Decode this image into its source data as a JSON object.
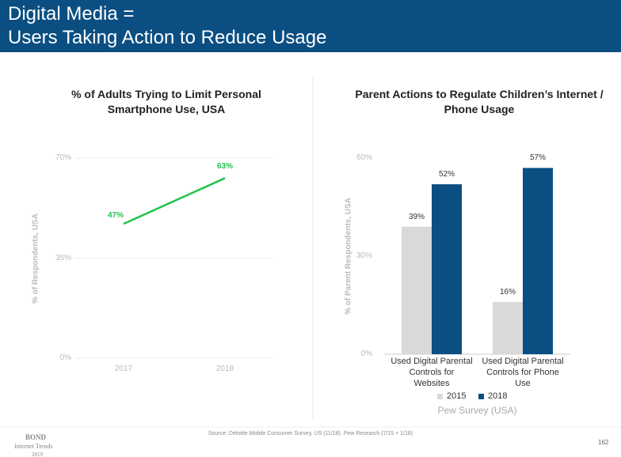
{
  "header": {
    "title_lines": [
      "Digital Media =",
      "Users Taking Action to Reduce Usage"
    ]
  },
  "chart_data": [
    {
      "type": "line",
      "title": "% of Adults Trying to Limit Personal Smartphone Use, USA",
      "y_label": "% of Respondents, USA",
      "categories": [
        "2017",
        "2018"
      ],
      "values": [
        47,
        63
      ],
      "value_labels": [
        "47%",
        "63%"
      ],
      "color": "#22c24b",
      "ylim": [
        0,
        70
      ],
      "yticks": [
        {
          "value": 0,
          "label": "0%"
        },
        {
          "value": 35,
          "label": "35%"
        },
        {
          "value": 70,
          "label": "70%"
        }
      ],
      "grid": true
    },
    {
      "type": "bar",
      "title": "Parent Actions to Regulate Children’s Internet / Phone Usage",
      "y_label": "% of Parent Respondents, USA",
      "categories": [
        "Used Digital Parental Controls for Websites",
        "Used Digital Parental Controls for Phone Use"
      ],
      "series": [
        {
          "name": "2015",
          "color": "#d9d9d9",
          "values": [
            39,
            16
          ],
          "value_labels": [
            "39%",
            "16%"
          ]
        },
        {
          "name": "2018",
          "color": "#0b4f82",
          "values": [
            52,
            57
          ],
          "value_labels": [
            "52%",
            "57%"
          ]
        }
      ],
      "ylim": [
        0,
        60
      ],
      "yticks": [
        {
          "value": 0,
          "label": "0%"
        },
        {
          "value": 30,
          "label": "30%"
        },
        {
          "value": 60,
          "label": "60%"
        }
      ],
      "grid": false,
      "note": "Pew Survey (USA)"
    }
  ],
  "footer": {
    "source": "Source: Deloitte Mobile Consumer Survey, US (11/18). Pew Research (7/15 + 1/18)",
    "logo": [
      "BOND",
      "Internet Trends",
      "2019"
    ],
    "page": "162"
  }
}
